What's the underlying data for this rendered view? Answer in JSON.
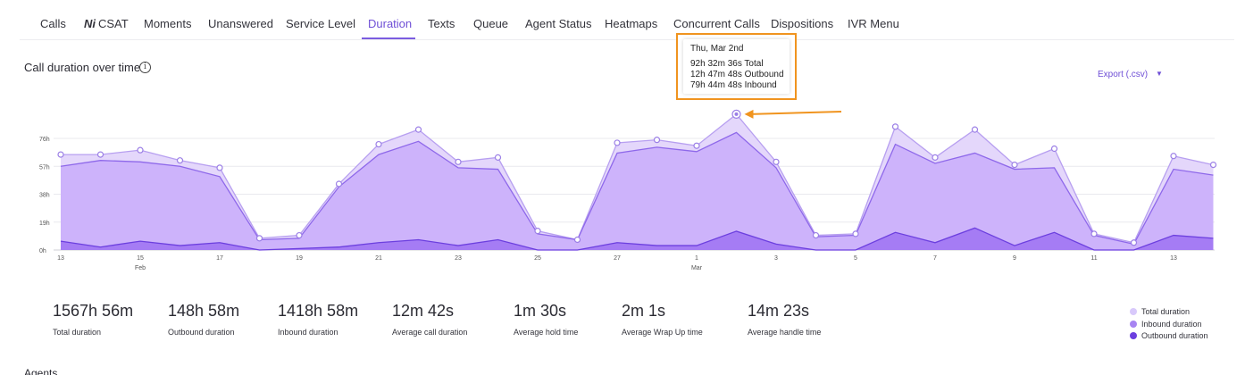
{
  "tabs": [
    {
      "label": "Calls",
      "active": false
    },
    {
      "label": "CSAT",
      "active": false,
      "icon": "csat-logo-icon",
      "icon_glyph": "Ni"
    },
    {
      "label": "Moments",
      "active": false
    },
    {
      "label": "Unanswered",
      "active": false
    },
    {
      "label": "Service Level",
      "active": false
    },
    {
      "label": "Duration",
      "active": true
    },
    {
      "label": "Texts",
      "active": false
    },
    {
      "label": "Queue",
      "active": false
    },
    {
      "label": "Agent Status",
      "active": false
    },
    {
      "label": "Heatmaps",
      "active": false
    },
    {
      "label": "Concurrent Calls",
      "active": false
    },
    {
      "label": "Dispositions",
      "active": false
    },
    {
      "label": "IVR Menu",
      "active": false
    }
  ],
  "chart_header": {
    "title": "Call duration over time",
    "info_icon": "info-icon",
    "info_glyph": "i",
    "export_label": "Export (.csv)",
    "export_icon": "caret-down-icon",
    "export_glyph": "▼"
  },
  "tooltip": {
    "date": "Thu, Mar 2nd",
    "lines": [
      "92h 32m 36s Total",
      "12h 47m 48s Outbound",
      "79h 44m 48s Inbound"
    ],
    "highlight_color": "#f0941f"
  },
  "chart_data": {
    "type": "area",
    "title": "Call duration over time",
    "xlabel": "",
    "ylabel": "",
    "ylim": [
      0,
      76
    ],
    "grid": true,
    "legend_position": "bottom-right",
    "y_ticks": [
      {
        "value": 0,
        "label": "0h"
      },
      {
        "value": 19,
        "label": "19h"
      },
      {
        "value": 38,
        "label": "38h"
      },
      {
        "value": 57,
        "label": "57h"
      },
      {
        "value": 76,
        "label": "76h"
      }
    ],
    "x_ticks": [
      {
        "day": 0,
        "label": "13",
        "sub": ""
      },
      {
        "day": 2,
        "label": "15",
        "sub": "Feb"
      },
      {
        "day": 4,
        "label": "17",
        "sub": ""
      },
      {
        "day": 6,
        "label": "19",
        "sub": ""
      },
      {
        "day": 8,
        "label": "21",
        "sub": ""
      },
      {
        "day": 10,
        "label": "23",
        "sub": ""
      },
      {
        "day": 12,
        "label": "25",
        "sub": ""
      },
      {
        "day": 14,
        "label": "27",
        "sub": ""
      },
      {
        "day": 16,
        "label": "1",
        "sub": "Mar"
      },
      {
        "day": 18,
        "label": "3",
        "sub": ""
      },
      {
        "day": 20,
        "label": "5",
        "sub": ""
      },
      {
        "day": 22,
        "label": "7",
        "sub": ""
      },
      {
        "day": 24,
        "label": "9",
        "sub": ""
      },
      {
        "day": 26,
        "label": "11",
        "sub": ""
      },
      {
        "day": 28,
        "label": "13",
        "sub": ""
      }
    ],
    "x_days": [
      0,
      1,
      2,
      3,
      4,
      5,
      6,
      7,
      8,
      9,
      10,
      11,
      12,
      13,
      14,
      15,
      16,
      17,
      18,
      19,
      20,
      21,
      22,
      23,
      24,
      25,
      26,
      27,
      28,
      29
    ],
    "highlight_index": 17,
    "series": [
      {
        "name": "Total duration",
        "color": "#e4d7fb",
        "line_color": "#b79ff0",
        "marker_color": "#9b7fe6",
        "values": [
          65,
          65,
          68,
          61,
          56,
          8,
          10,
          45,
          72,
          82,
          60,
          63,
          13,
          7,
          73,
          75,
          71,
          92.5,
          60,
          10,
          11,
          84,
          63,
          82,
          58,
          69,
          11,
          5,
          64,
          58
        ]
      },
      {
        "name": "Inbound duration",
        "color": "#cdb3fb",
        "line_color": "#8e68ea",
        "values": [
          57,
          61,
          60,
          57,
          50,
          7,
          8,
          43,
          65,
          74,
          56,
          55,
          11,
          7,
          66,
          70,
          67,
          80,
          56,
          9,
          10,
          72,
          59,
          66,
          55,
          56,
          10,
          4,
          55,
          51
        ]
      },
      {
        "name": "Outbound duration",
        "color": "#a57cf4",
        "line_color": "#6c3fdf",
        "values": [
          6,
          2,
          6,
          3,
          5,
          0,
          1,
          2,
          5,
          7,
          3,
          7,
          0,
          0,
          5,
          3,
          3,
          12.8,
          4,
          0,
          0,
          12,
          5,
          15,
          3,
          12,
          0,
          0,
          10,
          8
        ]
      }
    ]
  },
  "stats": [
    {
      "value": "1567h 56m",
      "label": "Total duration"
    },
    {
      "value": "148h 58m",
      "label": "Outbound duration"
    },
    {
      "value": "1418h 58m",
      "label": "Inbound duration"
    },
    {
      "value": "12m 42s",
      "label": "Average call duration"
    },
    {
      "value": "1m 30s",
      "label": "Average hold time"
    },
    {
      "value": "2m 1s",
      "label": "Average Wrap Up time"
    },
    {
      "value": "14m 23s",
      "label": "Average handle time"
    }
  ],
  "legend": [
    {
      "label": "Total duration",
      "color": "#d8c9fb"
    },
    {
      "label": "Inbound duration",
      "color": "#a784f2"
    },
    {
      "label": "Outbound duration",
      "color": "#6c3fdf"
    }
  ],
  "agents_heading": "Agents"
}
